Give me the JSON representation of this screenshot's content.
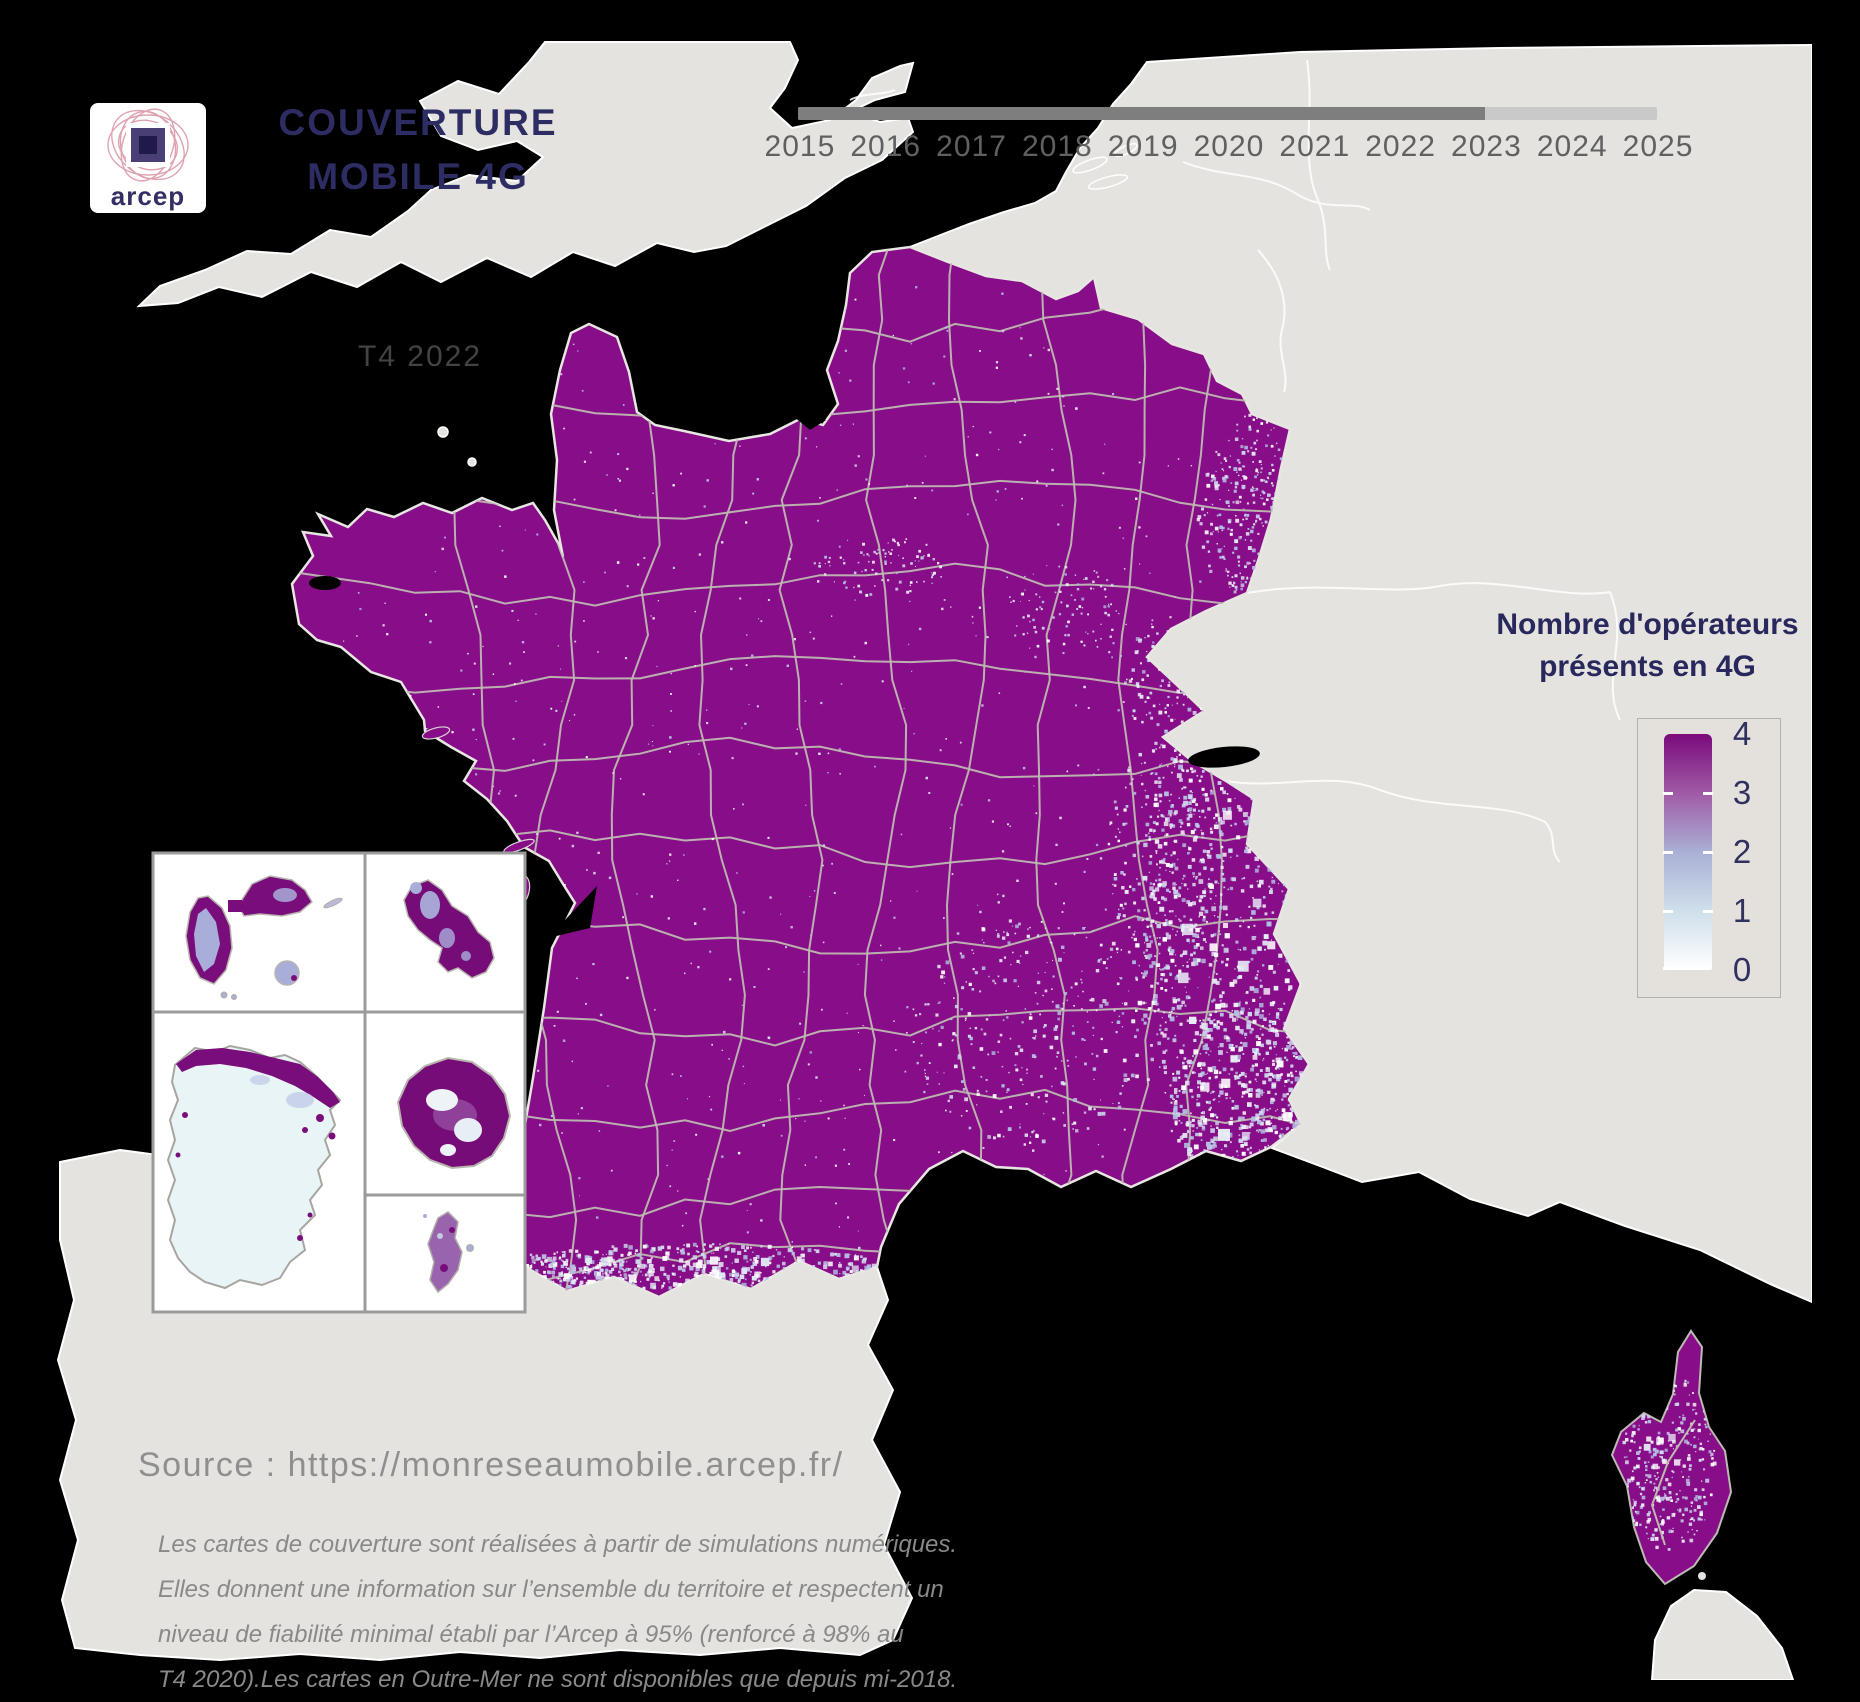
{
  "branding": {
    "logo_text": "arcep"
  },
  "title": {
    "line1": "COUVERTURE",
    "line2": "MOBILE 4G"
  },
  "period_label": "T4 2022",
  "timeline": {
    "years": [
      "2015",
      "2016",
      "2017",
      "2018",
      "2019",
      "2020",
      "2021",
      "2022",
      "2023",
      "2024",
      "2025"
    ],
    "progress_percent": 80
  },
  "legend": {
    "title_line1": "Nombre d'opérateurs",
    "title_line2": "présents en 4G",
    "scale_labels": [
      "4",
      "3",
      "2",
      "1",
      "0"
    ]
  },
  "source": "Source : https://monreseaumobile.arcep.fr/",
  "disclaimer_lines": [
    "Les cartes de couverture sont réalisées à partir de simulations numériques.",
    "Elles donnent une information sur l’ensemble du territoire et respectent un",
    "niveau de fiabilité minimal établi par l’Arcep à 95% (renforcé à 98% au",
    "T4 2020).Les cartes en Outre-Mer ne sont disponibles que depuis mi-2018."
  ],
  "colors": {
    "sea": "#000000",
    "land": "#e5e3df",
    "coverage_4": "#880e89",
    "accent_navy": "#2d2d63",
    "legend_scale": [
      "#7a0b7c",
      "#a05aa5",
      "#a9b0d5",
      "#cfdfeb",
      "#ffffff"
    ]
  }
}
